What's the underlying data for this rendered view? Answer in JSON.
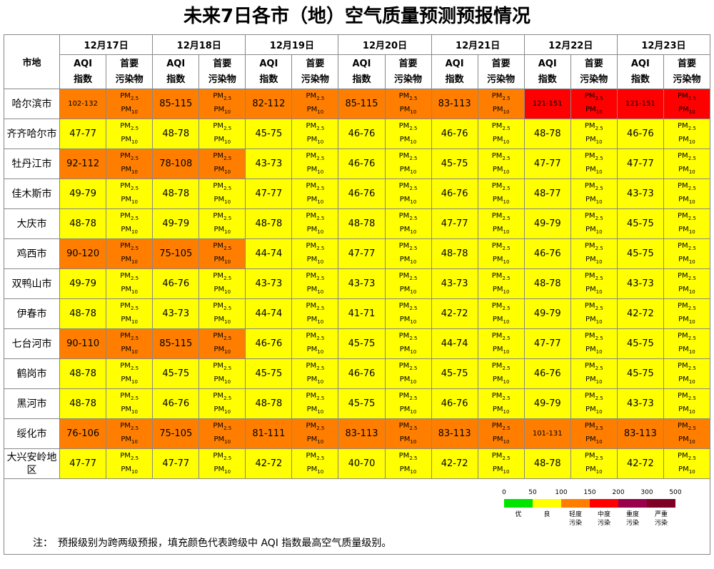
{
  "title": "未来7日各市（地）空气质量预测预报情况",
  "header": {
    "city": "市地",
    "dates": [
      "12月17日",
      "12月18日",
      "12月19日",
      "12月20日",
      "12月21日",
      "12月22日",
      "12月23日"
    ],
    "aqi": [
      "AQI",
      "指数"
    ],
    "pollutant": [
      "首要",
      "污染物"
    ]
  },
  "rows": [
    {
      "city": "哈尔滨市",
      "aqi": [
        "102-132",
        "85-115",
        "82-112",
        "85-115",
        "83-113",
        "121-151",
        "121-151"
      ],
      "pollutants": [
        [
          "PM2.5",
          "PM10"
        ],
        [
          "PM2.5",
          "PM10"
        ],
        [
          "PM2.5",
          "PM10"
        ],
        [
          "PM2.5",
          "PM10"
        ],
        [
          "PM2.5",
          "PM10"
        ],
        [
          "PM2.5",
          "PM10"
        ],
        [
          "PM2.5",
          "PM10"
        ]
      ]
    },
    {
      "city": "齐齐哈尔市",
      "aqi": [
        "47-77",
        "48-78",
        "45-75",
        "46-76",
        "46-76",
        "48-78",
        "46-76"
      ],
      "pollutants": [
        [
          "PM2.5",
          "PM10"
        ],
        [
          "PM2.5",
          "PM10"
        ],
        [
          "PM2.5",
          "PM10"
        ],
        [
          "PM2.5",
          "PM10"
        ],
        [
          "PM2.5",
          "PM10"
        ],
        [
          "PM2.5",
          "PM10"
        ],
        [
          "PM2.5",
          "PM10"
        ]
      ]
    },
    {
      "city": "牡丹江市",
      "aqi": [
        "92-112",
        "78-108",
        "43-73",
        "46-76",
        "45-75",
        "47-77",
        "47-77"
      ],
      "pollutants": [
        [
          "PM2.5",
          "PM10"
        ],
        [
          "PM2.5",
          "PM10"
        ],
        [
          "PM2.5",
          "PM10"
        ],
        [
          "PM2.5",
          "PM10"
        ],
        [
          "PM2.5",
          "PM10"
        ],
        [
          "PM2.5",
          "PM10"
        ],
        [
          "PM2.5",
          "PM10"
        ]
      ]
    },
    {
      "city": "佳木斯市",
      "aqi": [
        "49-79",
        "48-78",
        "47-77",
        "46-76",
        "46-76",
        "48-77",
        "43-73"
      ],
      "pollutants": [
        [
          "PM2.5",
          "PM10"
        ],
        [
          "PM2.5",
          "PM10"
        ],
        [
          "PM2.5",
          "PM10"
        ],
        [
          "PM2.5",
          "PM10"
        ],
        [
          "PM2.5",
          "PM10"
        ],
        [
          "PM2.5",
          "PM10"
        ],
        [
          "PM2.5",
          "PM10"
        ]
      ]
    },
    {
      "city": "大庆市",
      "aqi": [
        "48-78",
        "49-79",
        "48-78",
        "48-78",
        "47-77",
        "49-79",
        "45-75"
      ],
      "pollutants": [
        [
          "PM2.5",
          "PM10"
        ],
        [
          "PM2.5",
          "PM10"
        ],
        [
          "PM2.5",
          "PM10"
        ],
        [
          "PM2.5",
          "PM10"
        ],
        [
          "PM2.5",
          "PM10"
        ],
        [
          "PM2.5",
          "PM10"
        ],
        [
          "PM2.5",
          "PM10"
        ]
      ]
    },
    {
      "city": "鸡西市",
      "aqi": [
        "90-120",
        "75-105",
        "44-74",
        "47-77",
        "48-78",
        "46-76",
        "45-75"
      ],
      "pollutants": [
        [
          "PM2.5",
          "PM10"
        ],
        [
          "PM2.5",
          "PM10"
        ],
        [
          "PM2.5",
          "PM10"
        ],
        [
          "PM2.5",
          "PM10"
        ],
        [
          "PM2.5",
          "PM10"
        ],
        [
          "PM2.5",
          "PM10"
        ],
        [
          "PM2.5",
          "PM10"
        ]
      ]
    },
    {
      "city": "双鸭山市",
      "aqi": [
        "49-79",
        "46-76",
        "43-73",
        "43-73",
        "43-73",
        "48-78",
        "43-73"
      ],
      "pollutants": [
        [
          "PM2.5",
          "PM10"
        ],
        [
          "PM2.5",
          "PM10"
        ],
        [
          "PM2.5",
          "PM10"
        ],
        [
          "PM2.5",
          "PM10"
        ],
        [
          "PM2.5",
          "PM10"
        ],
        [
          "PM2.5",
          "PM10"
        ],
        [
          "PM2.5",
          "PM10"
        ]
      ]
    },
    {
      "city": "伊春市",
      "aqi": [
        "48-78",
        "43-73",
        "44-74",
        "41-71",
        "42-72",
        "49-79",
        "42-72"
      ],
      "pollutants": [
        [
          "PM2.5",
          "PM10"
        ],
        [
          "PM2.5",
          "PM10"
        ],
        [
          "PM2.5",
          "PM10"
        ],
        [
          "PM2.5",
          "PM10"
        ],
        [
          "PM2.5",
          "PM10"
        ],
        [
          "PM2.5",
          "PM10"
        ],
        [
          "PM2.5",
          "PM10"
        ]
      ]
    },
    {
      "city": "七台河市",
      "aqi": [
        "90-110",
        "85-115",
        "46-76",
        "45-75",
        "44-74",
        "47-77",
        "45-75"
      ],
      "pollutants": [
        [
          "PM2.5",
          "PM10"
        ],
        [
          "PM2.5",
          "PM10"
        ],
        [
          "PM2.5",
          "PM10"
        ],
        [
          "PM2.5",
          "PM10"
        ],
        [
          "PM2.5",
          "PM10"
        ],
        [
          "PM2.5",
          "PM10"
        ],
        [
          "PM2.5",
          "PM10"
        ]
      ]
    },
    {
      "city": "鹤岗市",
      "aqi": [
        "48-78",
        "45-75",
        "45-75",
        "46-76",
        "45-75",
        "46-76",
        "45-75"
      ],
      "pollutants": [
        [
          "PM2.5",
          "PM10"
        ],
        [
          "PM2.5",
          "PM10"
        ],
        [
          "PM2.5",
          "PM10"
        ],
        [
          "PM2.5",
          "PM10"
        ],
        [
          "PM2.5",
          "PM10"
        ],
        [
          "PM2.5",
          "PM10"
        ],
        [
          "PM2.5",
          "PM10"
        ]
      ]
    },
    {
      "city": "黑河市",
      "aqi": [
        "48-78",
        "46-76",
        "48-78",
        "45-75",
        "46-76",
        "49-79",
        "43-73"
      ],
      "pollutants": [
        [
          "PM2.5",
          "PM10"
        ],
        [
          "PM2.5",
          "PM10"
        ],
        [
          "PM2.5",
          "PM10"
        ],
        [
          "PM2.5",
          "PM10"
        ],
        [
          "PM2.5",
          "PM10"
        ],
        [
          "PM2.5",
          "PM10"
        ],
        [
          "PM2.5",
          "PM10"
        ]
      ]
    },
    {
      "city": "绥化市",
      "aqi": [
        "76-106",
        "75-105",
        "81-111",
        "83-113",
        "83-113",
        "101-131",
        "83-113"
      ],
      "pollutants": [
        [
          "PM2.5",
          "PM10"
        ],
        [
          "PM2.5",
          "PM10"
        ],
        [
          "PM2.5",
          "PM10"
        ],
        [
          "PM2.5",
          "PM10"
        ],
        [
          "PM2.5",
          "PM10"
        ],
        [
          "PM2.5",
          "PM10"
        ],
        [
          "PM2.5",
          "PM10"
        ]
      ]
    },
    {
      "city": "大兴安岭地区",
      "aqi": [
        "47-77",
        "47-77",
        "42-72",
        "40-70",
        "42-72",
        "48-78",
        "42-72"
      ],
      "pollutants": [
        [
          "PM2.5",
          "PM10"
        ],
        [
          "PM2.5",
          "PM10"
        ],
        [
          "PM2.5",
          "PM10"
        ],
        [
          "PM2.5",
          "PM10"
        ],
        [
          "PM2.5",
          "PM10"
        ],
        [
          "PM2.5",
          "PM10"
        ],
        [
          "PM2.5",
          "PM10"
        ]
      ]
    }
  ],
  "legend": {
    "ticks": [
      0,
      50,
      100,
      150,
      200,
      300,
      500
    ],
    "levels": [
      {
        "label": "优",
        "color": "#00e400"
      },
      {
        "label": "良",
        "color": "#ffff00"
      },
      {
        "label": "轻度污染",
        "color": "#ff7e00"
      },
      {
        "label": "中度污染",
        "color": "#ff0000"
      },
      {
        "label": "重度污染",
        "color": "#99004c"
      },
      {
        "label": "严重污染",
        "color": "#7e0023"
      }
    ]
  },
  "note": {
    "prefix": "注：",
    "text": "预报级别为跨两级预报，填充颜色代表跨级中 AQI 指数最高空气质量级别。"
  }
}
